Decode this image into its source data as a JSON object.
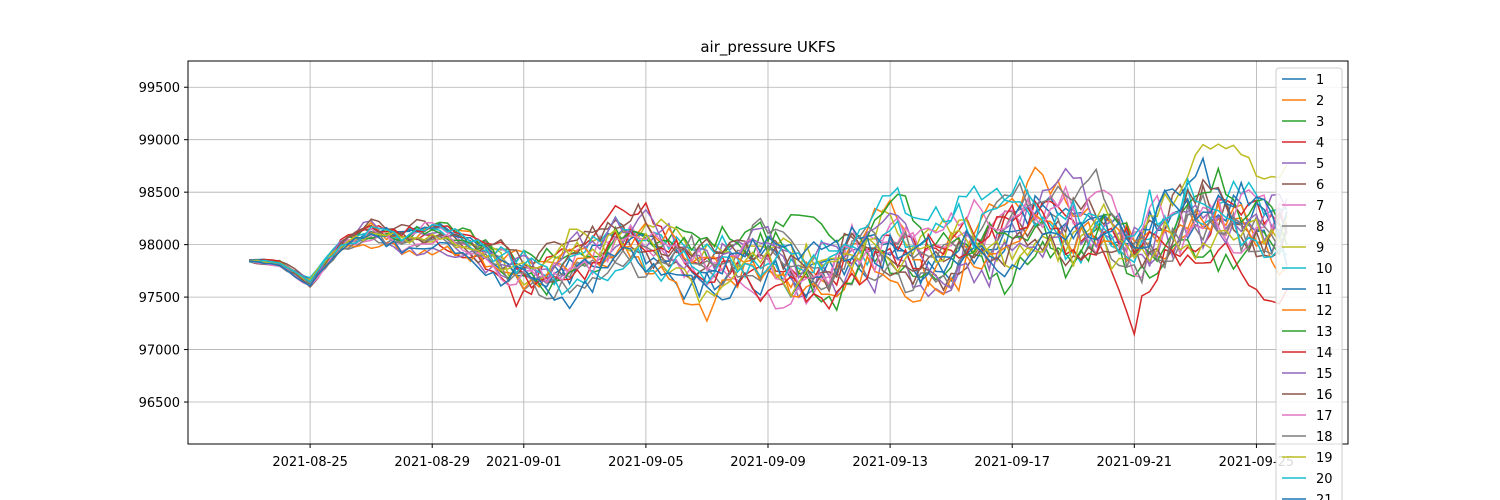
{
  "chart_data": {
    "type": "line",
    "title": "air_pressure UKFS",
    "xlabel": "",
    "ylabel": "",
    "x_start": "2021-08-23",
    "x_end": "2021-09-26",
    "samples_per_day": 4,
    "xlim": [
      "2021-08-21",
      "2021-09-28"
    ],
    "ylim": [
      96100,
      99750
    ],
    "x_ticks": [
      "2021-08-25",
      "2021-08-29",
      "2021-09-01",
      "2021-09-05",
      "2021-09-09",
      "2021-09-13",
      "2021-09-17",
      "2021-09-21",
      "2021-09-25"
    ],
    "y_ticks": [
      96500,
      97000,
      97500,
      98000,
      98500,
      99000,
      99500
    ],
    "grid": true,
    "legend_position": "right",
    "mean_profile": [
      [
        "2021-08-23",
        97850
      ],
      [
        "2021-08-24",
        97820
      ],
      [
        "2021-08-25",
        97640
      ],
      [
        "2021-08-26",
        98000
      ],
      [
        "2021-08-27",
        98150
      ],
      [
        "2021-08-28",
        98050
      ],
      [
        "2021-08-29",
        98100
      ],
      [
        "2021-08-30",
        98000
      ],
      [
        "2021-08-31",
        97850
      ],
      [
        "2021-09-01",
        97700
      ],
      [
        "2021-09-02",
        97750
      ],
      [
        "2021-09-03",
        97900
      ],
      [
        "2021-09-04",
        98050
      ],
      [
        "2021-09-05",
        98000
      ],
      [
        "2021-09-06",
        97850
      ],
      [
        "2021-09-07",
        97750
      ],
      [
        "2021-09-08",
        97850
      ],
      [
        "2021-09-09",
        97900
      ],
      [
        "2021-09-10",
        97750
      ],
      [
        "2021-09-11",
        97800
      ],
      [
        "2021-09-12",
        98000
      ],
      [
        "2021-09-13",
        98050
      ],
      [
        "2021-09-14",
        97900
      ],
      [
        "2021-09-15",
        97950
      ],
      [
        "2021-09-16",
        98100
      ],
      [
        "2021-09-17",
        98200
      ],
      [
        "2021-09-18",
        98250
      ],
      [
        "2021-09-19",
        98200
      ],
      [
        "2021-09-20",
        98150
      ],
      [
        "2021-09-21",
        97900
      ],
      [
        "2021-09-22",
        98100
      ],
      [
        "2021-09-23",
        98250
      ],
      [
        "2021-09-24",
        98200
      ],
      [
        "2021-09-25",
        98150
      ],
      [
        "2021-09-26",
        98100
      ]
    ],
    "spread_profile": [
      [
        "2021-08-23",
        40
      ],
      [
        "2021-08-25",
        80
      ],
      [
        "2021-08-27",
        180
      ],
      [
        "2021-08-30",
        200
      ],
      [
        "2021-09-01",
        380
      ],
      [
        "2021-09-05",
        450
      ],
      [
        "2021-09-09",
        500
      ],
      [
        "2021-09-13",
        560
      ],
      [
        "2021-09-17",
        620
      ],
      [
        "2021-09-21",
        700
      ],
      [
        "2021-09-26",
        660
      ]
    ],
    "series": [
      {
        "name": "1",
        "color": "#1f77b4"
      },
      {
        "name": "2",
        "color": "#ff7f0e"
      },
      {
        "name": "3",
        "color": "#2ca02c"
      },
      {
        "name": "4",
        "color": "#d62728"
      },
      {
        "name": "5",
        "color": "#9467bd"
      },
      {
        "name": "6",
        "color": "#8c564b"
      },
      {
        "name": "7",
        "color": "#e377c2"
      },
      {
        "name": "8",
        "color": "#7f7f7f"
      },
      {
        "name": "9",
        "color": "#bcbd22"
      },
      {
        "name": "10",
        "color": "#17becf"
      },
      {
        "name": "11",
        "color": "#1f77b4"
      },
      {
        "name": "12",
        "color": "#ff7f0e"
      },
      {
        "name": "13",
        "color": "#2ca02c"
      },
      {
        "name": "14",
        "color": "#d62728"
      },
      {
        "name": "15",
        "color": "#9467bd"
      },
      {
        "name": "16",
        "color": "#8c564b"
      },
      {
        "name": "17",
        "color": "#e377c2"
      },
      {
        "name": "18",
        "color": "#7f7f7f"
      },
      {
        "name": "19",
        "color": "#bcbd22"
      },
      {
        "name": "20",
        "color": "#17becf"
      },
      {
        "name": "21",
        "color": "#1f77b4"
      }
    ]
  }
}
